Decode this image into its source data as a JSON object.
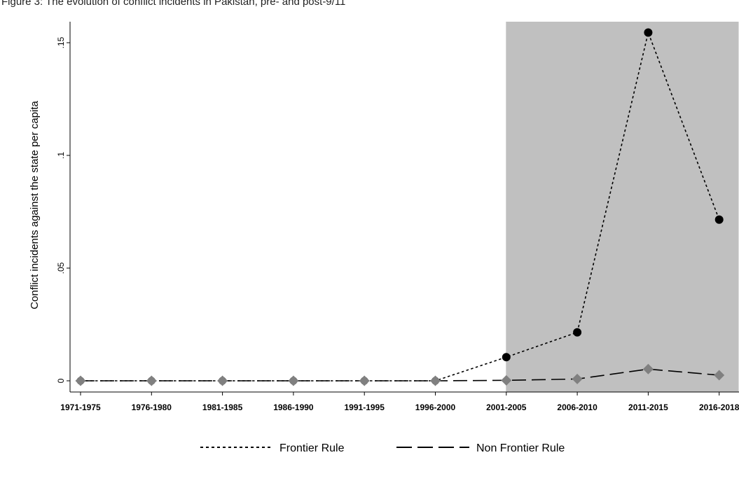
{
  "caption": "Figure 3: The evolution of conflict incidents in Pakistan, pre- and post-9/11",
  "colors": {
    "shade": "#c0c0c0",
    "frontier_marker": "#000000",
    "non_frontier_marker": "#808080",
    "axis": "#000000"
  },
  "chart_data": {
    "type": "line",
    "title": "",
    "ylabel": "Conflict incidents against the state per capita",
    "xlabel": "",
    "categories": [
      "1971-1975",
      "1976-1980",
      "1981-1985",
      "1986-1990",
      "1991-1995",
      "1996-2000",
      "2001-2005",
      "2006-2010",
      "2011-2015",
      "2016-2018"
    ],
    "ylim": [
      0,
      0.16
    ],
    "yticks": [
      0,
      0.05,
      0.1,
      0.15
    ],
    "ytick_labels": [
      "0",
      ".05",
      ".1",
      ".15"
    ],
    "shaded_from_category": "2001-2005",
    "series": [
      {
        "name": "Frontier Rule",
        "line_style": "dotted",
        "marker": "circle",
        "values": [
          0,
          0,
          0,
          0,
          0,
          0,
          0.0105,
          0.0215,
          0.1545,
          0.0715
        ]
      },
      {
        "name": "Non Frontier Rule",
        "line_style": "long-dash",
        "marker": "diamond",
        "values": [
          0,
          0,
          0,
          0,
          0,
          0,
          0.0002,
          0.0008,
          0.0052,
          0.0025
        ]
      }
    ],
    "legend_position": "bottom-center",
    "grid": false
  }
}
